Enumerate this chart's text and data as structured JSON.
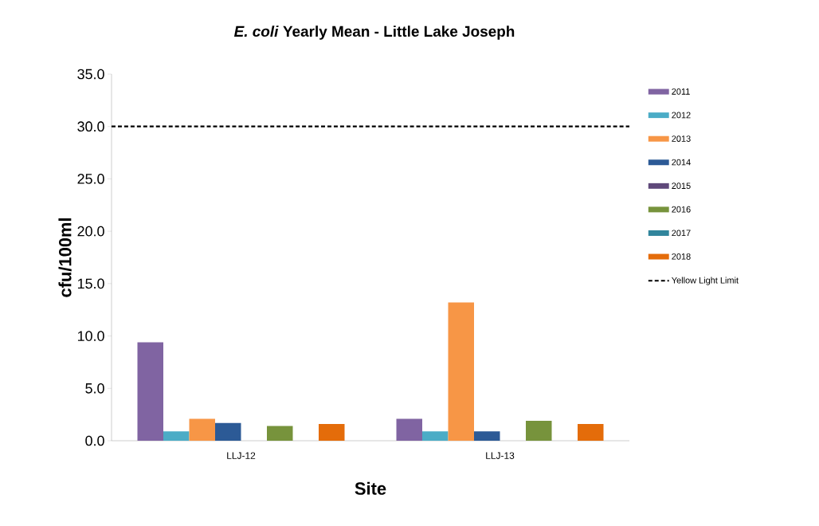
{
  "chart_data": {
    "type": "bar",
    "title": "*E. coli* Yearly Mean - Little Lake Joseph",
    "xlabel": "Site",
    "ylabel": "cfu/100ml",
    "categories": [
      "LLJ-12",
      "LLJ-13"
    ],
    "series": [
      {
        "name": "2011",
        "color": "#8064a2",
        "values": [
          9.4,
          2.1
        ]
      },
      {
        "name": "2012",
        "color": "#4bacc6",
        "values": [
          0.9,
          0.9
        ]
      },
      {
        "name": "2013",
        "color": "#f79646",
        "values": [
          2.1,
          13.2
        ]
      },
      {
        "name": "2014",
        "color": "#2c5a96",
        "values": [
          1.7,
          0.9
        ]
      },
      {
        "name": "2015",
        "color": "#5f497a",
        "values": [
          null,
          null
        ]
      },
      {
        "name": "2016",
        "color": "#77933c",
        "values": [
          1.4,
          1.9
        ]
      },
      {
        "name": "2017",
        "color": "#31859c",
        "values": [
          null,
          null
        ]
      },
      {
        "name": "2018",
        "color": "#e46c0a",
        "values": [
          1.6,
          1.6
        ]
      }
    ],
    "ylim": [
      0,
      35
    ],
    "yticks": [
      {
        "value": 0,
        "label": "0.0"
      },
      {
        "value": 5,
        "label": "5.0"
      },
      {
        "value": 10,
        "label": "10.0"
      },
      {
        "value": 15,
        "label": "15.0"
      },
      {
        "value": 20,
        "label": "20.0"
      },
      {
        "value": 25,
        "label": "25.0"
      },
      {
        "value": 30,
        "label": "30.0"
      },
      {
        "value": 35,
        "label": "35.0"
      }
    ],
    "ref_lines": [
      {
        "axis": "y",
        "value": 30,
        "label": "Yellow Light Limit",
        "color": "#000000",
        "line_style": "dashed"
      }
    ],
    "grid": false,
    "legend": "right"
  }
}
